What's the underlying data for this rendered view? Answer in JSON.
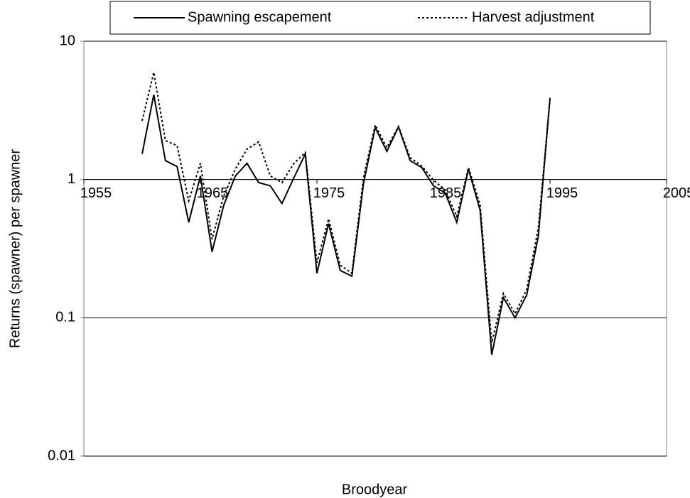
{
  "chart_data": {
    "type": "line",
    "x_label": "Broodyear",
    "y_label": "Returns (spawner) per spawner",
    "x": [
      1960,
      1961,
      1962,
      1963,
      1964,
      1965,
      1966,
      1967,
      1968,
      1969,
      1970,
      1971,
      1972,
      1973,
      1974,
      1975,
      1976,
      1977,
      1978,
      1979,
      1980,
      1981,
      1982,
      1983,
      1984,
      1985,
      1986,
      1987,
      1988,
      1989,
      1990,
      1991,
      1992,
      1993,
      1994,
      1995
    ],
    "series": [
      {
        "name": "Spawning escapement",
        "color": "#000000",
        "dash": "solid",
        "values": [
          1.53,
          4.1,
          1.37,
          1.24,
          0.49,
          1.06,
          0.3,
          0.65,
          1.06,
          1.31,
          0.95,
          0.9,
          0.67,
          1.02,
          1.53,
          0.21,
          0.48,
          0.22,
          0.2,
          0.94,
          2.37,
          1.6,
          2.4,
          1.37,
          1.22,
          0.9,
          0.8,
          0.49,
          1.19,
          0.6,
          0.054,
          0.14,
          0.1,
          0.146,
          0.39,
          3.9
        ]
      },
      {
        "name": "Harvest adjustment",
        "color": "#000000",
        "dash": "dotted",
        "values": [
          2.66,
          5.95,
          1.91,
          1.76,
          0.7,
          1.31,
          0.37,
          0.76,
          1.19,
          1.66,
          1.87,
          1.06,
          0.95,
          1.3,
          1.57,
          0.25,
          0.52,
          0.24,
          0.21,
          1.04,
          2.48,
          1.7,
          2.42,
          1.44,
          1.25,
          0.99,
          0.84,
          0.54,
          1.22,
          0.66,
          0.066,
          0.15,
          0.107,
          0.16,
          0.45,
          3.8
        ]
      }
    ],
    "xlim": [
      1955,
      2005
    ],
    "xticks": [
      1955,
      1965,
      1975,
      1985,
      1995,
      2005
    ],
    "ylim": [
      0.01,
      10
    ],
    "yticks": [
      0.01,
      0.1,
      1,
      10
    ],
    "y_log": true,
    "grid": true,
    "x_axis_crosses": 1,
    "legend": "top"
  }
}
